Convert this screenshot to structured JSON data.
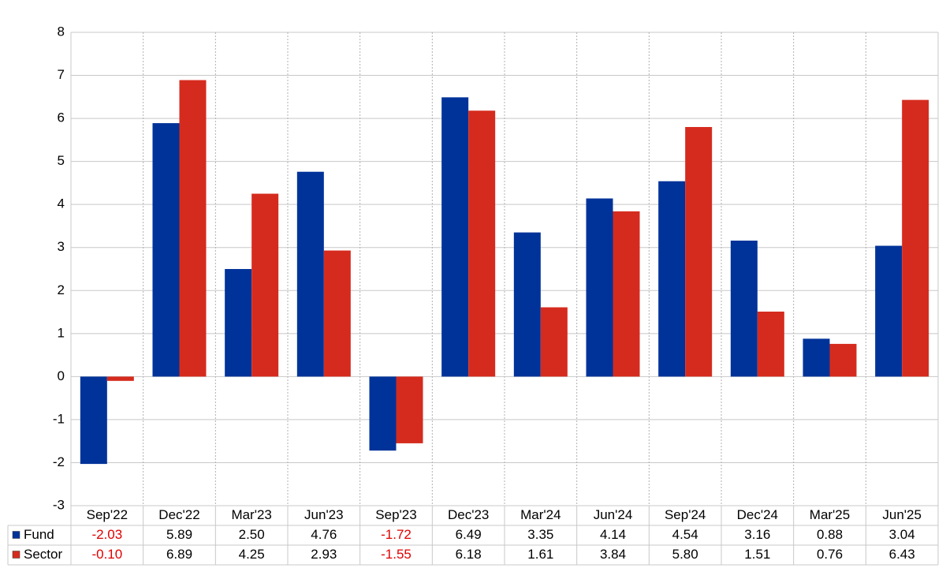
{
  "chart_data": {
    "type": "bar",
    "categories": [
      "Sep'22",
      "Dec'22",
      "Mar'23",
      "Jun'23",
      "Sep'23",
      "Dec'23",
      "Mar'24",
      "Jun'24",
      "Sep'24",
      "Dec'24",
      "Mar'25",
      "Jun'25"
    ],
    "series": [
      {
        "name": "Fund",
        "color": "#003399",
        "values": [
          -2.03,
          5.89,
          2.5,
          4.76,
          -1.72,
          6.49,
          3.35,
          4.14,
          4.54,
          3.16,
          0.88,
          3.04
        ],
        "value_labels": [
          "-2.03",
          "5.89",
          "2.50",
          "4.76",
          "-1.72",
          "6.49",
          "3.35",
          "4.14",
          "4.54",
          "3.16",
          "0.88",
          "3.04"
        ]
      },
      {
        "name": "Sector",
        "color": "#d52b1e",
        "values": [
          -0.1,
          6.89,
          4.25,
          2.93,
          -1.55,
          6.18,
          1.61,
          3.84,
          5.8,
          1.51,
          0.76,
          6.43
        ],
        "value_labels": [
          "-0.10",
          "6.89",
          "4.25",
          "2.93",
          "-1.55",
          "6.18",
          "1.61",
          "3.84",
          "5.80",
          "1.51",
          "0.76",
          "6.43"
        ]
      }
    ],
    "ylim": [
      -3,
      8
    ],
    "yticks": [
      -3,
      -2,
      -1,
      0,
      1,
      2,
      3,
      4,
      5,
      6,
      7,
      8
    ],
    "grid": true
  }
}
